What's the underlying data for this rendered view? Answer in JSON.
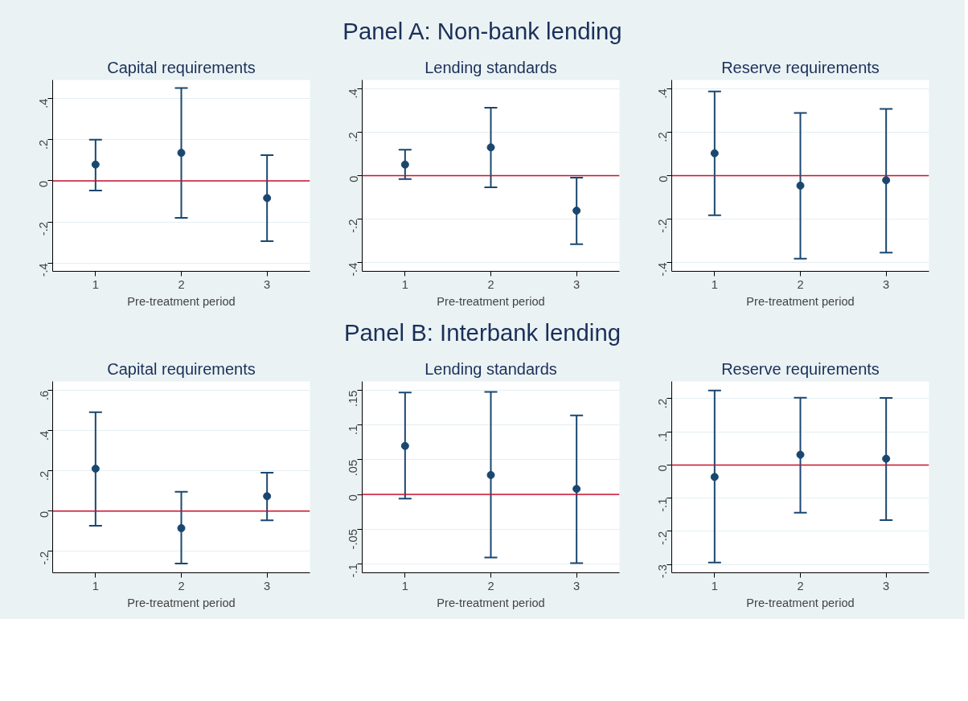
{
  "chart_data": [
    {
      "type": "scatter",
      "annotations": [
        "Panel A: Non-bank lending"
      ],
      "title": "Capital requirements",
      "xlabel": "Pre-treatment period",
      "x": [
        1,
        2,
        3
      ],
      "marker": "circle",
      "grid": "y",
      "xlim": [
        0.5,
        3.5
      ],
      "xticks": [
        1,
        2,
        3
      ],
      "ylim": [
        -0.44,
        0.49
      ],
      "yticks": [
        {
          "value": -0.4,
          "label": "-.4"
        },
        {
          "value": -0.2,
          "label": "-.2"
        },
        0,
        {
          "value": 0.2,
          "label": ".2"
        },
        {
          "value": 0.4,
          "label": ".4"
        }
      ],
      "ref_lines": [
        {
          "axis": "y",
          "value": 0,
          "color": "#c8102e"
        }
      ],
      "series": [
        {
          "color": "#1a476f",
          "values": [
            0.079,
            0.136,
            -0.084
          ],
          "errors": [
            [
              -0.047,
              0.2
            ],
            [
              -0.18,
              0.451
            ],
            [
              -0.293,
              0.125
            ]
          ]
        }
      ]
    },
    {
      "type": "scatter",
      "title": "Lending standards",
      "xlabel": "Pre-treatment period",
      "x": [
        1,
        2,
        3
      ],
      "marker": "circle",
      "grid": "y",
      "xlim": [
        0.5,
        3.5
      ],
      "xticks": [
        1,
        2,
        3
      ],
      "ylim": [
        -0.44,
        0.44
      ],
      "yticks": [
        {
          "value": -0.4,
          "label": "-.4"
        },
        {
          "value": -0.2,
          "label": "-.2"
        },
        0,
        {
          "value": 0.2,
          "label": ".2"
        },
        {
          "value": 0.4,
          "label": ".4"
        }
      ],
      "ref_lines": [
        {
          "axis": "y",
          "value": 0,
          "color": "#c8102e"
        }
      ],
      "series": [
        {
          "color": "#1a476f",
          "values": [
            0.051,
            0.13,
            -0.161
          ],
          "errors": [
            [
              -0.016,
              0.119
            ],
            [
              -0.054,
              0.312
            ],
            [
              -0.315,
              -0.009
            ]
          ]
        }
      ]
    },
    {
      "type": "scatter",
      "title": "Reserve requirements",
      "xlabel": "Pre-treatment period",
      "x": [
        1,
        2,
        3
      ],
      "marker": "circle",
      "grid": "y",
      "xlim": [
        0.5,
        3.5
      ],
      "xticks": [
        1,
        2,
        3
      ],
      "ylim": [
        -0.44,
        0.44
      ],
      "yticks": [
        {
          "value": -0.4,
          "label": "-.4"
        },
        {
          "value": -0.2,
          "label": "-.2"
        },
        0,
        {
          "value": 0.2,
          "label": ".2"
        },
        {
          "value": 0.4,
          "label": ".4"
        }
      ],
      "ref_lines": [
        {
          "axis": "y",
          "value": 0,
          "color": "#c8102e"
        }
      ],
      "series": [
        {
          "color": "#1a476f",
          "values": [
            0.103,
            -0.046,
            -0.021
          ],
          "errors": [
            [
              -0.182,
              0.387
            ],
            [
              -0.382,
              0.288
            ],
            [
              -0.354,
              0.307
            ]
          ]
        }
      ]
    },
    {
      "type": "scatter",
      "annotations": [
        "Panel B: Interbank lending"
      ],
      "title": "Capital requirements",
      "xlabel": "Pre-treatment period",
      "x": [
        1,
        2,
        3
      ],
      "marker": "circle",
      "grid": "y",
      "xlim": [
        0.5,
        3.5
      ],
      "xticks": [
        1,
        2,
        3
      ],
      "ylim": [
        -0.307,
        0.645
      ],
      "yticks": [
        {
          "value": -0.2,
          "label": "-.2"
        },
        0,
        {
          "value": 0.2,
          "label": ".2"
        },
        {
          "value": 0.4,
          "label": ".4"
        },
        {
          "value": 0.6,
          "label": ".6"
        }
      ],
      "ref_lines": [
        {
          "axis": "y",
          "value": 0,
          "color": "#c8102e"
        }
      ],
      "series": [
        {
          "color": "#1a476f",
          "values": [
            0.211,
            -0.085,
            0.074
          ],
          "errors": [
            [
              -0.073,
              0.492
            ],
            [
              -0.261,
              0.096
            ],
            [
              -0.046,
              0.191
            ]
          ]
        }
      ]
    },
    {
      "type": "scatter",
      "title": "Lending standards",
      "xlabel": "Pre-treatment period",
      "x": [
        1,
        2,
        3
      ],
      "marker": "circle",
      "grid": "y",
      "xlim": [
        0.5,
        3.5
      ],
      "xticks": [
        1,
        2,
        3
      ],
      "ylim": [
        -0.113,
        0.163
      ],
      "yticks": [
        {
          "value": -0.1,
          "label": "-.1"
        },
        {
          "value": -0.05,
          "label": "-.05"
        },
        0,
        {
          "value": 0.05,
          "label": ".05"
        },
        {
          "value": 0.1,
          "label": ".1"
        },
        {
          "value": 0.15,
          "label": ".15"
        }
      ],
      "ref_lines": [
        {
          "axis": "y",
          "value": 0,
          "color": "#c8102e"
        }
      ],
      "series": [
        {
          "color": "#1a476f",
          "values": [
            0.07,
            0.028,
            0.008
          ],
          "errors": [
            [
              -0.006,
              0.147
            ],
            [
              -0.091,
              0.148
            ],
            [
              -0.099,
              0.114
            ]
          ]
        }
      ]
    },
    {
      "type": "scatter",
      "title": "Reserve requirements",
      "xlabel": "Pre-treatment period",
      "x": [
        1,
        2,
        3
      ],
      "marker": "circle",
      "grid": "y",
      "xlim": [
        0.5,
        3.5
      ],
      "xticks": [
        1,
        2,
        3
      ],
      "ylim": [
        -0.325,
        0.252
      ],
      "yticks": [
        {
          "value": -0.3,
          "label": "-.3"
        },
        {
          "value": -0.2,
          "label": "-.2"
        },
        {
          "value": -0.1,
          "label": "-.1"
        },
        0,
        {
          "value": 0.1,
          "label": ".1"
        },
        {
          "value": 0.2,
          "label": ".2"
        }
      ],
      "ref_lines": [
        {
          "axis": "y",
          "value": 0,
          "color": "#c8102e"
        }
      ],
      "series": [
        {
          "color": "#1a476f",
          "values": [
            -0.036,
            0.031,
            0.019
          ],
          "errors": [
            [
              -0.294,
              0.225
            ],
            [
              -0.144,
              0.203
            ],
            [
              -0.166,
              0.202
            ]
          ]
        }
      ]
    }
  ]
}
